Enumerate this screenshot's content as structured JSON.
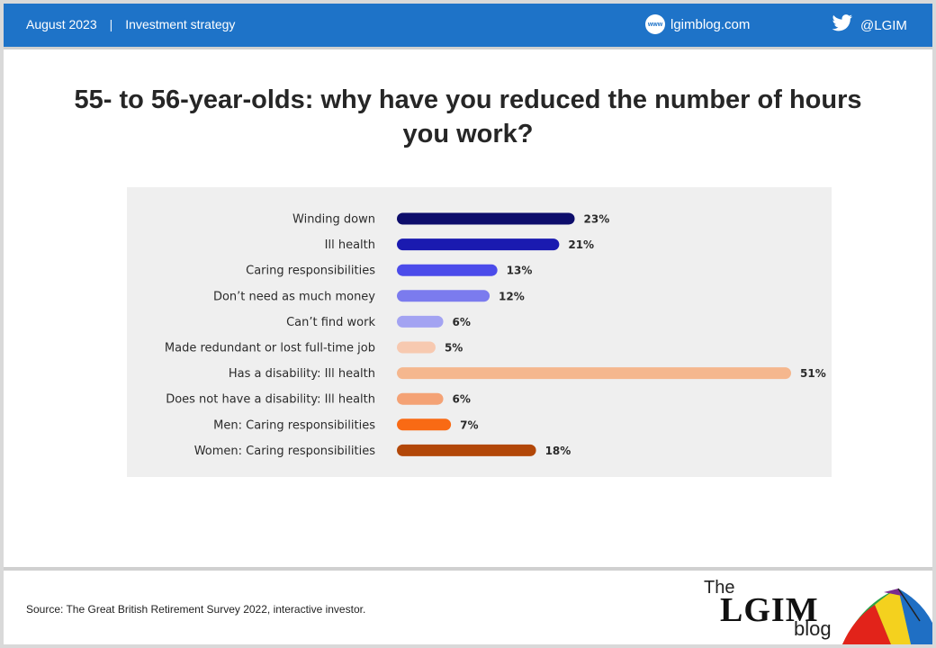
{
  "header": {
    "date": "August 2023",
    "separator": "|",
    "category": "Investment strategy",
    "blog_icon_text": "www",
    "blog_site": "lgimblog.com",
    "twitter_handle": "@LGIM",
    "bg_color": "#1e73c8"
  },
  "title": "55- to 56-year-olds: why have you reduced the number of hours you work?",
  "chart_data": {
    "type": "bar",
    "orientation": "horizontal",
    "categories": [
      "Winding down",
      "Ill health",
      "Caring responsibilities",
      "Don’t need as much money",
      "Can’t find work",
      "Made redundant or lost full-time job",
      "Has a disability: Ill health",
      "Does not have a disability: Ill health",
      "Men: Caring responsibilities",
      "Women: Caring responsibilities"
    ],
    "values": [
      23,
      21,
      13,
      12,
      6,
      5,
      51,
      6,
      7,
      18
    ],
    "value_labels": [
      "23%",
      "21%",
      "13%",
      "12%",
      "6%",
      "5%",
      "51%",
      "6%",
      "7%",
      "18%"
    ],
    "colors": [
      "#0d0d6b",
      "#1a1ab0",
      "#4b4bea",
      "#7b7bee",
      "#a3a3f2",
      "#f7c9b0",
      "#f5b78e",
      "#f4a275",
      "#f96a14",
      "#b24708"
    ],
    "unit": "%",
    "grid": false,
    "legend": "none"
  },
  "footer": {
    "source": "Source: The Great British Retirement Survey 2022, interactive investor.",
    "logo_the": "The",
    "logo_lgim": "LGIM",
    "logo_blog": "blog"
  }
}
